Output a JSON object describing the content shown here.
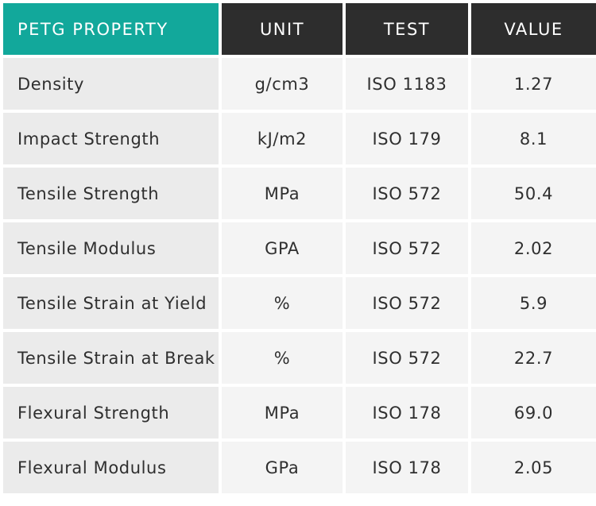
{
  "table": {
    "headers": [
      "PETG PROPERTY",
      "UNIT",
      "TEST",
      "VALUE"
    ],
    "rows": [
      {
        "property": "Density",
        "unit": "g/cm3",
        "test": "ISO 1183",
        "value": "1.27"
      },
      {
        "property": "Impact Strength",
        "unit": "kJ/m2",
        "test": "ISO 179",
        "value": "8.1"
      },
      {
        "property": "Tensile Strength",
        "unit": "MPa",
        "test": "ISO 572",
        "value": "50.4"
      },
      {
        "property": "Tensile Modulus",
        "unit": "GPA",
        "test": "ISO 572",
        "value": "2.02"
      },
      {
        "property": "Tensile Strain at Yield",
        "unit": "%",
        "test": "ISO 572",
        "value": "5.9"
      },
      {
        "property": "Tensile Strain at Break",
        "unit": "%",
        "test": "ISO 572",
        "value": "22.7"
      },
      {
        "property": "Flexural Strength",
        "unit": "MPa",
        "test": "ISO 178",
        "value": "69.0"
      },
      {
        "property": "Flexural Modulus",
        "unit": "GPa",
        "test": "ISO 178",
        "value": "2.05"
      }
    ]
  },
  "colors": {
    "accent_header": "#12a89b",
    "dark_header": "#2d2d2d",
    "row_first_column": "#ebebeb",
    "row_cell": "#f4f4f4",
    "text": "#2f2f2f"
  }
}
